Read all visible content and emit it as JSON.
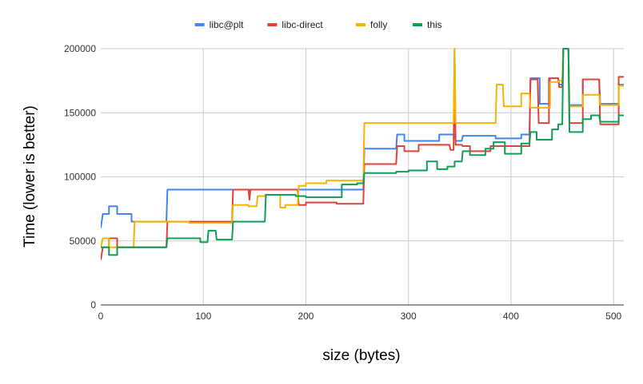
{
  "chart_data": {
    "type": "line",
    "xlabel": "size (bytes)",
    "ylabel": "Time (lower is better)",
    "xlim": [
      0,
      510
    ],
    "ylim": [
      0,
      200000
    ],
    "x_ticks": [
      0,
      100,
      200,
      300,
      400,
      500
    ],
    "y_ticks": [
      0,
      50000,
      100000,
      150000,
      200000
    ],
    "x_tick_labels": [
      "0",
      "100",
      "200",
      "300",
      "400",
      "500"
    ],
    "y_tick_labels": [
      "0",
      "50000",
      "100000",
      "150000",
      "200000"
    ],
    "grid": true,
    "legend_position": "top-center",
    "series": [
      {
        "name": "libc@plt",
        "color": "#4285f4",
        "points": [
          [
            0,
            60000
          ],
          [
            2,
            71000
          ],
          [
            8,
            71000
          ],
          [
            8,
            77000
          ],
          [
            16,
            77000
          ],
          [
            16,
            71000
          ],
          [
            30,
            71000
          ],
          [
            30,
            65000
          ],
          [
            64,
            65000
          ],
          [
            65,
            90000
          ],
          [
            128,
            90000
          ],
          [
            256,
            90000
          ],
          [
            257,
            122000
          ],
          [
            288,
            122000
          ],
          [
            289,
            133000
          ],
          [
            296,
            133000
          ],
          [
            296,
            128000
          ],
          [
            330,
            128000
          ],
          [
            330,
            133000
          ],
          [
            345,
            133000
          ],
          [
            346,
            128000
          ],
          [
            352,
            128000
          ],
          [
            353,
            132000
          ],
          [
            385,
            132000
          ],
          [
            385,
            130000
          ],
          [
            410,
            130000
          ],
          [
            410,
            133000
          ],
          [
            418,
            133000
          ],
          [
            419,
            177000
          ],
          [
            428,
            177000
          ],
          [
            428,
            157000
          ],
          [
            438,
            157000
          ],
          [
            438,
            177000
          ],
          [
            446,
            177000
          ],
          [
            447,
            172000
          ],
          [
            450,
            172000
          ],
          [
            451,
            200000
          ],
          [
            456,
            200000
          ],
          [
            457,
            156000
          ],
          [
            470,
            156000
          ],
          [
            470,
            176000
          ],
          [
            486,
            176000
          ],
          [
            487,
            157000
          ],
          [
            505,
            157000
          ],
          [
            505,
            172000
          ],
          [
            510,
            172000
          ]
        ]
      },
      {
        "name": "libc-direct",
        "color": "#db4437",
        "points": [
          [
            0,
            35000
          ],
          [
            2,
            45000
          ],
          [
            8,
            45000
          ],
          [
            8,
            52000
          ],
          [
            16,
            52000
          ],
          [
            16,
            45000
          ],
          [
            64,
            45000
          ],
          [
            65,
            65000
          ],
          [
            128,
            65000
          ],
          [
            129,
            90000
          ],
          [
            144,
            90000
          ],
          [
            145,
            82000
          ],
          [
            146,
            90000
          ],
          [
            192,
            90000
          ],
          [
            193,
            78000
          ],
          [
            200,
            78000
          ],
          [
            200,
            80000
          ],
          [
            230,
            80000
          ],
          [
            230,
            79000
          ],
          [
            256,
            79000
          ],
          [
            257,
            110000
          ],
          [
            288,
            110000
          ],
          [
            289,
            124000
          ],
          [
            296,
            124000
          ],
          [
            296,
            120000
          ],
          [
            310,
            120000
          ],
          [
            310,
            125000
          ],
          [
            340,
            125000
          ],
          [
            341,
            121000
          ],
          [
            344,
            121000
          ],
          [
            345,
            200000
          ],
          [
            346,
            125000
          ],
          [
            352,
            125000
          ],
          [
            353,
            124000
          ],
          [
            360,
            124000
          ],
          [
            360,
            120000
          ],
          [
            380,
            120000
          ],
          [
            380,
            124000
          ],
          [
            418,
            124000
          ],
          [
            419,
            176000
          ],
          [
            426,
            176000
          ],
          [
            427,
            142000
          ],
          [
            437,
            142000
          ],
          [
            437,
            177000
          ],
          [
            446,
            177000
          ],
          [
            447,
            170000
          ],
          [
            450,
            170000
          ],
          [
            451,
            200000
          ],
          [
            456,
            200000
          ],
          [
            457,
            142000
          ],
          [
            470,
            142000
          ],
          [
            470,
            176000
          ],
          [
            486,
            176000
          ],
          [
            487,
            141000
          ],
          [
            505,
            141000
          ],
          [
            505,
            178000
          ],
          [
            510,
            178000
          ]
        ]
      },
      {
        "name": "folly",
        "color": "#f4b400",
        "points": [
          [
            0,
            45000
          ],
          [
            2,
            52000
          ],
          [
            8,
            52000
          ],
          [
            8,
            45000
          ],
          [
            32,
            45000
          ],
          [
            33,
            65000
          ],
          [
            86,
            65000
          ],
          [
            86,
            64000
          ],
          [
            128,
            64000
          ],
          [
            129,
            78000
          ],
          [
            144,
            78000
          ],
          [
            144,
            77000
          ],
          [
            152,
            77000
          ],
          [
            153,
            85000
          ],
          [
            160,
            85000
          ],
          [
            160,
            86000
          ],
          [
            175,
            86000
          ],
          [
            175,
            76000
          ],
          [
            180,
            76000
          ],
          [
            180,
            78000
          ],
          [
            192,
            78000
          ],
          [
            193,
            93000
          ],
          [
            200,
            93000
          ],
          [
            200,
            95000
          ],
          [
            220,
            95000
          ],
          [
            220,
            97000
          ],
          [
            256,
            97000
          ],
          [
            257,
            142000
          ],
          [
            344,
            142000
          ],
          [
            345,
            200000
          ],
          [
            346,
            142000
          ],
          [
            385,
            142000
          ],
          [
            386,
            172000
          ],
          [
            392,
            172000
          ],
          [
            393,
            155000
          ],
          [
            410,
            155000
          ],
          [
            410,
            165000
          ],
          [
            418,
            165000
          ],
          [
            419,
            154000
          ],
          [
            438,
            154000
          ],
          [
            438,
            174000
          ],
          [
            446,
            174000
          ],
          [
            447,
            175000
          ],
          [
            450,
            175000
          ],
          [
            451,
            200000
          ],
          [
            456,
            200000
          ],
          [
            457,
            155000
          ],
          [
            470,
            155000
          ],
          [
            470,
            164000
          ],
          [
            486,
            164000
          ],
          [
            487,
            156000
          ],
          [
            505,
            156000
          ],
          [
            505,
            171000
          ],
          [
            510,
            171000
          ]
        ]
      },
      {
        "name": "this",
        "color": "#0f9d58",
        "points": [
          [
            0,
            45000
          ],
          [
            8,
            45000
          ],
          [
            8,
            39000
          ],
          [
            16,
            39000
          ],
          [
            16,
            45000
          ],
          [
            64,
            45000
          ],
          [
            65,
            52000
          ],
          [
            97,
            52000
          ],
          [
            97,
            49000
          ],
          [
            104,
            49000
          ],
          [
            105,
            58000
          ],
          [
            112,
            58000
          ],
          [
            113,
            51000
          ],
          [
            128,
            51000
          ],
          [
            129,
            65000
          ],
          [
            160,
            65000
          ],
          [
            161,
            86000
          ],
          [
            190,
            86000
          ],
          [
            190,
            85000
          ],
          [
            200,
            85000
          ],
          [
            200,
            84000
          ],
          [
            235,
            84000
          ],
          [
            235,
            94000
          ],
          [
            250,
            94000
          ],
          [
            250,
            95000
          ],
          [
            256,
            95000
          ],
          [
            257,
            103000
          ],
          [
            288,
            103000
          ],
          [
            288,
            104000
          ],
          [
            300,
            104000
          ],
          [
            300,
            105000
          ],
          [
            318,
            105000
          ],
          [
            318,
            112000
          ],
          [
            328,
            112000
          ],
          [
            328,
            106000
          ],
          [
            338,
            106000
          ],
          [
            338,
            108000
          ],
          [
            345,
            108000
          ],
          [
            345,
            112000
          ],
          [
            352,
            112000
          ],
          [
            353,
            120000
          ],
          [
            360,
            120000
          ],
          [
            360,
            117000
          ],
          [
            375,
            117000
          ],
          [
            375,
            122000
          ],
          [
            383,
            122000
          ],
          [
            383,
            127000
          ],
          [
            394,
            127000
          ],
          [
            394,
            118000
          ],
          [
            410,
            118000
          ],
          [
            410,
            126000
          ],
          [
            418,
            126000
          ],
          [
            419,
            135000
          ],
          [
            425,
            135000
          ],
          [
            425,
            129000
          ],
          [
            440,
            129000
          ],
          [
            440,
            137000
          ],
          [
            446,
            137000
          ],
          [
            446,
            141000
          ],
          [
            450,
            141000
          ],
          [
            451,
            200000
          ],
          [
            456,
            200000
          ],
          [
            457,
            135000
          ],
          [
            470,
            135000
          ],
          [
            470,
            145000
          ],
          [
            478,
            145000
          ],
          [
            478,
            148000
          ],
          [
            486,
            148000
          ],
          [
            487,
            143000
          ],
          [
            505,
            143000
          ],
          [
            505,
            148000
          ],
          [
            510,
            148000
          ]
        ]
      }
    ]
  }
}
